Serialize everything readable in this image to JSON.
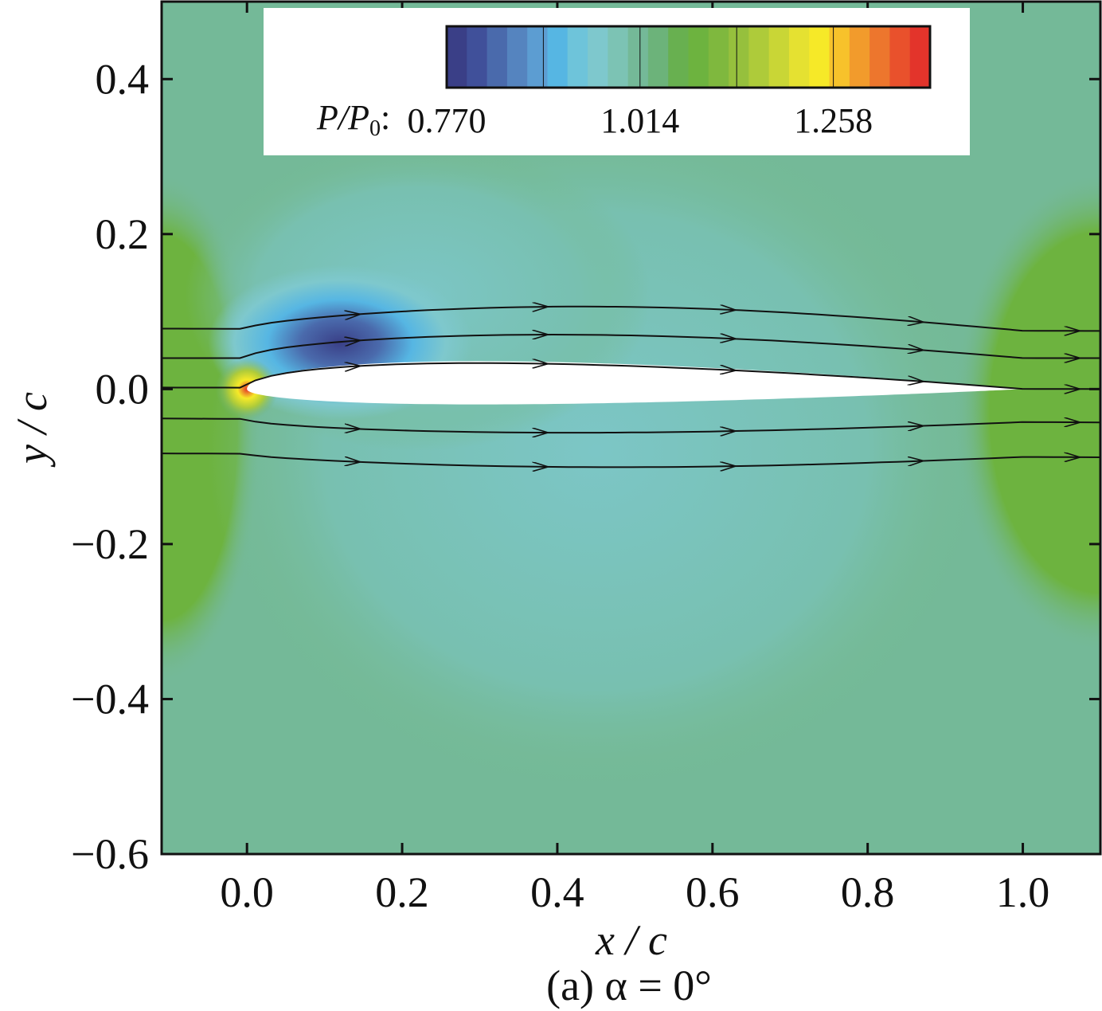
{
  "chart_data": {
    "type": "heatmap",
    "description_kind": "pressure contour with streamlines around airfoil",
    "xlabel": "x / c",
    "ylabel": "y / c",
    "xlim": [
      -0.11,
      1.1
    ],
    "ylim": [
      -0.6,
      0.5
    ],
    "x_ticks": [
      0.0,
      0.2,
      0.4,
      0.6,
      0.8,
      1.0
    ],
    "x_tick_labels": [
      "0.0",
      "0.2",
      "0.4",
      "0.6",
      "0.8",
      "1.0"
    ],
    "y_ticks": [
      0.4,
      0.2,
      0.0,
      -0.2,
      -0.4,
      -0.6
    ],
    "y_tick_labels": [
      "0.4",
      "0.2",
      "0.0",
      "−0.2",
      "−0.4",
      "−0.6"
    ],
    "caption": "(a) α = 0°",
    "colorbar": {
      "title": "P/P",
      "title_subscript": "0",
      "title_suffix": ":",
      "min": 0.77,
      "max": 1.38,
      "tick_values": [
        0.77,
        1.014,
        1.258
      ],
      "tick_labels": [
        "0.770",
        "1.014",
        "1.258"
      ],
      "colors": [
        "#3a3f87",
        "#40509a",
        "#4a6aac",
        "#5584bf",
        "#5c9dd2",
        "#56b6e3",
        "#6ec4da",
        "#7ec8cd",
        "#7cc3b4",
        "#74b998",
        "#6cb37a",
        "#68b050",
        "#6db33f",
        "#7fb83e",
        "#96c03d",
        "#aecb3a",
        "#c9d636",
        "#e5e131",
        "#f6e928",
        "#f7c22b",
        "#f29b2c",
        "#ed762d",
        "#e9512c",
        "#e3342b"
      ]
    },
    "background_level": 1.014,
    "low_pressure_region": {
      "x_center": 0.12,
      "y_center": 0.06,
      "min_value": 0.77
    },
    "stagnation_point": {
      "x": 0.0,
      "y": 0.0,
      "value": 1.38
    },
    "airfoil": {
      "leading_edge_x": 0.0,
      "trailing_edge_x": 1.0,
      "max_thickness": 0.072
    },
    "streamlines": [
      {
        "y_start": 0.078,
        "y_end": 0.075
      },
      {
        "y_start": 0.04,
        "y_end": 0.04
      },
      {
        "y_start": 0.002,
        "y_end": 0.0
      },
      {
        "y_start": -0.038,
        "y_end": -0.043
      },
      {
        "y_start": -0.083,
        "y_end": -0.088
      }
    ]
  }
}
